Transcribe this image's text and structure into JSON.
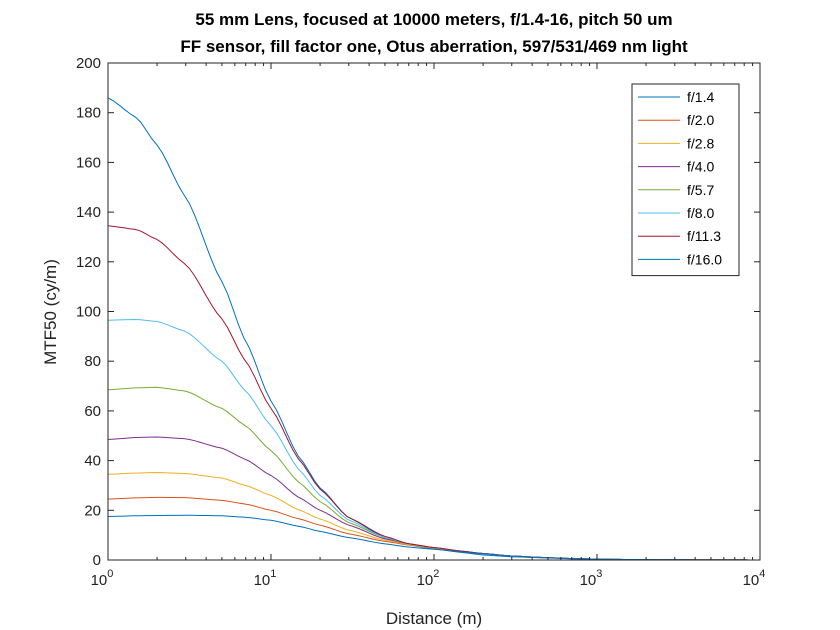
{
  "chart_data": {
    "type": "line",
    "title": [
      "55 mm Lens, focused at 10000 meters, f/1.4-16, pitch 50 um",
      "FF sensor, fill factor one, Otus aberration, 597/531/469 nm light"
    ],
    "xlabel": "Distance (m)",
    "ylabel": "MTF50 (cy/m)",
    "xscale": "log",
    "xlim": [
      1,
      10000
    ],
    "ylim": [
      0,
      200
    ],
    "xticks": [
      1,
      10,
      100,
      1000,
      10000
    ],
    "xtick_labels": [
      {
        "base": "10",
        "exp": "0"
      },
      {
        "base": "10",
        "exp": "1"
      },
      {
        "base": "10",
        "exp": "2"
      },
      {
        "base": "10",
        "exp": "3"
      },
      {
        "base": "10",
        "exp": "4"
      }
    ],
    "yticks": [
      0,
      20,
      40,
      60,
      80,
      100,
      120,
      140,
      160,
      180,
      200
    ],
    "ytick_labels": [
      "0",
      "20",
      "40",
      "60",
      "80",
      "100",
      "120",
      "140",
      "160",
      "180",
      "200"
    ],
    "grid": false,
    "legend_position": "top-right",
    "x": [
      1,
      1.5,
      2,
      3,
      5,
      7,
      10,
      15,
      20,
      30,
      50,
      70,
      100,
      150,
      200,
      300,
      500,
      700,
      1000,
      1500,
      2000,
      3000,
      5000,
      10000
    ],
    "series": [
      {
        "name": "f/1.4",
        "color": "#0072BD",
        "values": [
          186,
          178,
          167,
          146,
          112,
          88,
          64,
          41,
          29,
          17,
          9,
          6,
          4.5,
          3,
          2,
          1.3,
          0.8,
          0.5,
          0.3,
          0.2,
          0.15,
          0.1,
          0.05,
          0.02
        ]
      },
      {
        "name": "f/2.0",
        "color": "#D95319",
        "values": [
          24.5,
          25,
          25.2,
          25.1,
          24,
          22.5,
          20,
          16.5,
          14,
          10.5,
          7.5,
          6,
          4.8,
          3.5,
          2.6,
          1.6,
          0.9,
          0.6,
          0.35,
          0.2,
          0.15,
          0.1,
          0.05,
          0.02
        ]
      },
      {
        "name": "f/2.8",
        "color": "#EDB120",
        "values": [
          34.5,
          35,
          35.2,
          34.8,
          33,
          30,
          26,
          20,
          16.5,
          12,
          8,
          6.2,
          4.8,
          3.5,
          2.6,
          1.6,
          0.9,
          0.6,
          0.35,
          0.2,
          0.15,
          0.1,
          0.05,
          0.02
        ]
      },
      {
        "name": "f/4.0",
        "color": "#7E2F8E",
        "values": [
          48.5,
          49.3,
          49.5,
          48.8,
          45,
          40.5,
          34,
          25,
          20,
          14,
          8.5,
          6.5,
          5,
          3.5,
          2.6,
          1.6,
          0.9,
          0.6,
          0.35,
          0.2,
          0.15,
          0.1,
          0.05,
          0.02
        ]
      },
      {
        "name": "f/5.7",
        "color": "#77AC30",
        "values": [
          68.5,
          69.3,
          69.5,
          68,
          61,
          54,
          44,
          31,
          23.5,
          15,
          9,
          6.5,
          5,
          3.5,
          2.6,
          1.6,
          0.9,
          0.6,
          0.35,
          0.2,
          0.15,
          0.1,
          0.05,
          0.02
        ]
      },
      {
        "name": "f/8.0",
        "color": "#4DBEEE",
        "values": [
          96.5,
          96.8,
          96,
          92,
          80,
          68,
          54,
          36,
          26,
          16,
          9,
          6.5,
          5,
          3.5,
          2.6,
          1.6,
          0.9,
          0.6,
          0.35,
          0.2,
          0.15,
          0.1,
          0.05,
          0.02
        ]
      },
      {
        "name": "f/11.3",
        "color": "#A2142F",
        "values": [
          134.5,
          133,
          129,
          119,
          97,
          80,
          61,
          40,
          28.5,
          17,
          9.5,
          6.5,
          5,
          3.5,
          2.6,
          1.6,
          0.9,
          0.6,
          0.35,
          0.2,
          0.15,
          0.1,
          0.05,
          0.02
        ]
      },
      {
        "name": "f/16.0",
        "color": "#0072BD",
        "values": [
          17.5,
          17.8,
          17.9,
          18,
          17.8,
          17.2,
          16,
          13.5,
          11.5,
          9,
          6.5,
          5.2,
          4.3,
          3.2,
          2.5,
          1.6,
          0.9,
          0.6,
          0.35,
          0.2,
          0.15,
          0.1,
          0.05,
          0.02
        ]
      }
    ]
  }
}
